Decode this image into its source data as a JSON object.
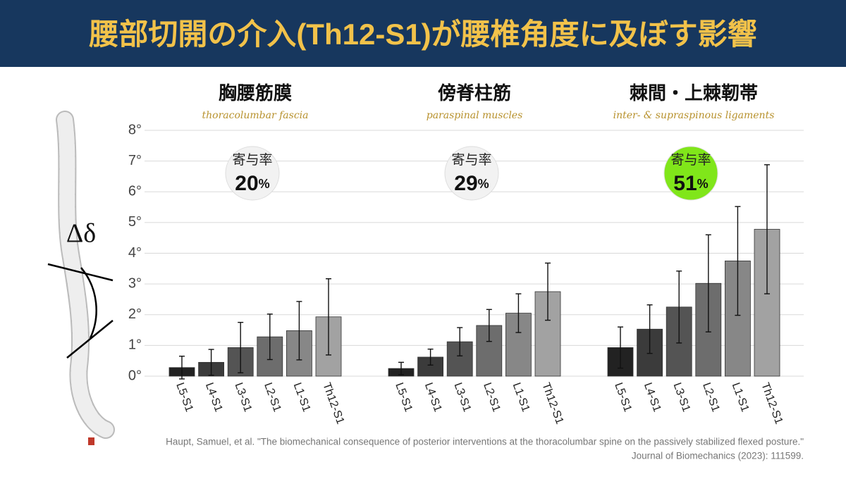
{
  "header": {
    "title": "腰部切開の介入(Th12-S1)が腰椎角度に及ぼす影響"
  },
  "chart_data": {
    "type": "bar",
    "ylim": [
      0,
      8
    ],
    "yticks": [
      {
        "value": 0,
        "label": "0°"
      },
      {
        "value": 1,
        "label": "1°"
      },
      {
        "value": 2,
        "label": "2°"
      },
      {
        "value": 3,
        "label": "3°"
      },
      {
        "value": 4,
        "label": "4°"
      },
      {
        "value": 5,
        "label": "5°"
      },
      {
        "value": 6,
        "label": "6°"
      },
      {
        "value": 7,
        "label": "7°"
      },
      {
        "value": 8,
        "label": "8°"
      }
    ],
    "grid": true,
    "annotation": "Δδ",
    "colors": [
      "#222222",
      "#3b3b3b",
      "#545454",
      "#6d6d6d",
      "#878787",
      "#a2a2a2"
    ],
    "groups": [
      {
        "title": "胸腰筋膜",
        "subtitle": "thoracolumbar fascia",
        "badge_title": "寄与率",
        "share": 20,
        "share_unit": "%",
        "badge_color": "#f2f2f2",
        "categories": [
          "L5-S1",
          "L4-S1",
          "L3-S1",
          "L2-S1",
          "L1-S1",
          "Th12-S1"
        ],
        "values": [
          0.28,
          0.45,
          0.93,
          1.28,
          1.48,
          1.93
        ],
        "errors": [
          0.37,
          0.42,
          0.82,
          0.74,
          0.95,
          1.24
        ]
      },
      {
        "title": "傍脊柱筋",
        "subtitle": "paraspinal muscles",
        "badge_title": "寄与率",
        "share": 29,
        "share_unit": "%",
        "badge_color": "#f2f2f2",
        "categories": [
          "L5-S1",
          "L4-S1",
          "L3-S1",
          "L2-S1",
          "L1-S1",
          "Th12-S1"
        ],
        "values": [
          0.25,
          0.62,
          1.12,
          1.65,
          2.05,
          2.75
        ],
        "errors": [
          0.2,
          0.26,
          0.46,
          0.52,
          0.63,
          0.93
        ]
      },
      {
        "title": "棘間・上棘靭帯",
        "subtitle": "inter- & supraspinous ligaments",
        "badge_title": "寄与率",
        "share": 51,
        "share_unit": "%",
        "badge_color": "#80e61a",
        "categories": [
          "L5-S1",
          "L4-S1",
          "L3-S1",
          "L2-S1",
          "L1-S1",
          "Th12-S1"
        ],
        "values": [
          0.93,
          1.53,
          2.25,
          3.02,
          3.75,
          4.78
        ],
        "errors": [
          0.67,
          0.79,
          1.17,
          1.58,
          1.77,
          2.1
        ]
      }
    ]
  },
  "citation": {
    "line1": "Haupt, Samuel, et al. \"The biomechanical consequence of posterior interventions at the thoracolumbar spine on the passively stabilized flexed posture.\"",
    "line2": "Journal of Biomechanics (2023): 111599."
  }
}
